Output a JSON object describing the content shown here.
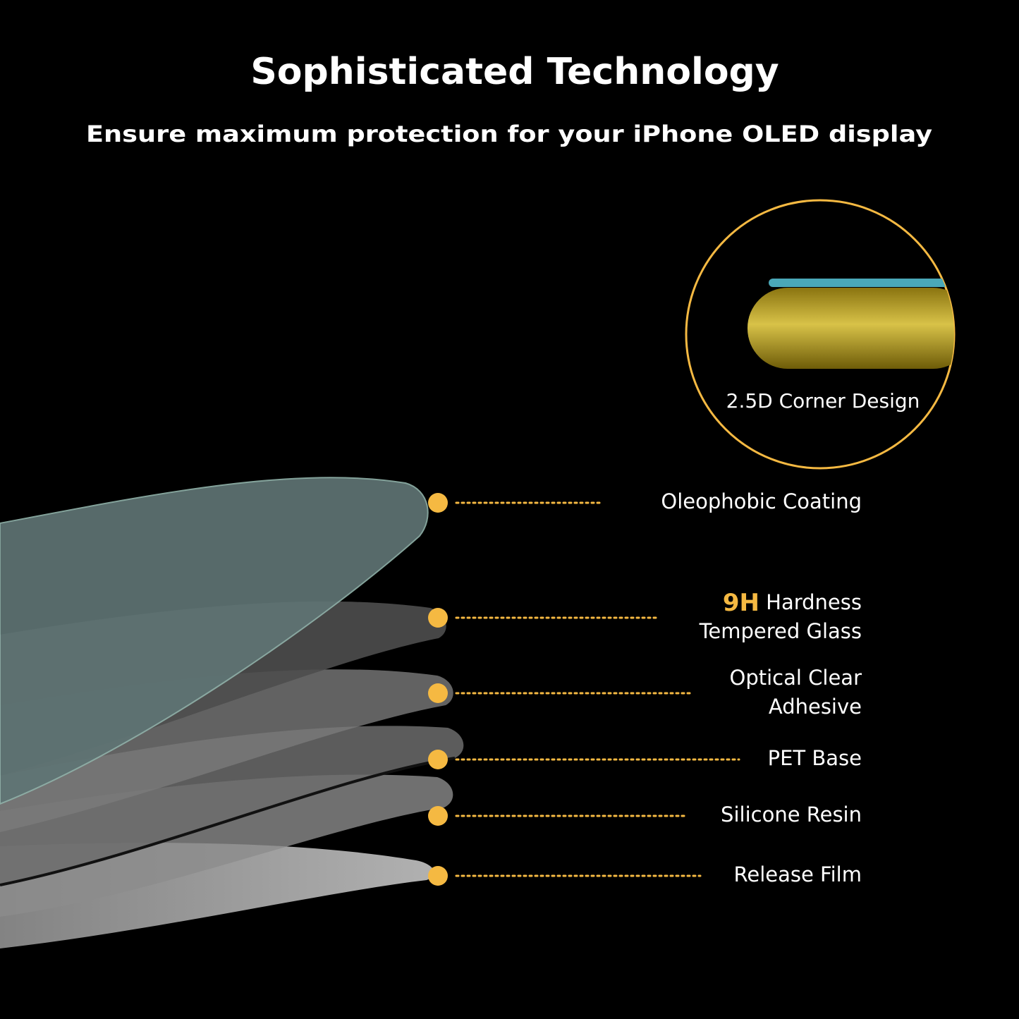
{
  "header": {
    "title": "Sophisticated Technology",
    "subtitle": "Ensure maximum protection for your iPhone OLED display"
  },
  "inset": {
    "label": "2.5D Corner Design"
  },
  "layers": [
    {
      "lines": [
        "Oleophobic Coating"
      ]
    },
    {
      "highlight": "9H",
      "lines": [
        "Hardness",
        "Tempered Glass"
      ]
    },
    {
      "lines": [
        "Optical Clear",
        "Adhesive"
      ]
    },
    {
      "lines": [
        "PET Base"
      ]
    },
    {
      "lines": [
        "Silicone Resin"
      ]
    },
    {
      "lines": [
        "Release Film"
      ]
    }
  ]
}
